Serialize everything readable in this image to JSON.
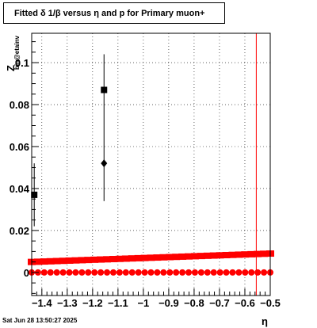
{
  "title": "Fitted δ 1/β versus η and p for Primary muon+",
  "footer_timestamp": "Sat Jun 28 13:50:27 2025",
  "colors": {
    "frame": "#000000",
    "grid": "#000000",
    "band": "#ff0000",
    "cut_line": "#ff0000",
    "points": "#000000"
  },
  "chart_data": {
    "type": "scatter",
    "title": "Fitted δ 1/β versus η and p for Primary muon+",
    "xlabel": "η",
    "ylabel": "Z",
    "ylabel_sub": "bin@etainv",
    "xlim": [
      -1.44,
      -0.5
    ],
    "ylim": [
      -0.011,
      0.114
    ],
    "x_ticks": [
      -1.4,
      -1.3,
      -1.2,
      -1.1,
      -1.0,
      -0.9,
      -0.8,
      -0.7,
      -0.6,
      -0.5
    ],
    "x_tick_labels": [
      "−1.4",
      "−1.3",
      "−1.2",
      "−1.1",
      "−1",
      "−0.9",
      "−0.8",
      "−0.7",
      "−0.6",
      "−0.5"
    ],
    "y_ticks": [
      0,
      0.02,
      0.04,
      0.06,
      0.08,
      0.1
    ],
    "y_tick_labels": [
      "0",
      "0.02",
      "0.04",
      "0.06",
      "0.08",
      "0.1"
    ],
    "grid": true,
    "vertical_line_x": -0.555,
    "series": [
      {
        "marker": "square",
        "color": "#000000",
        "points": [
          {
            "x": -1.43,
            "y": 0.037,
            "err": 0.015
          },
          {
            "x": -1.155,
            "y": 0.087,
            "err": 0.017
          }
        ]
      },
      {
        "marker": "diamond",
        "color": "#000000",
        "points": [
          {
            "x": -1.155,
            "y": 0.052,
            "err": 0.018
          }
        ]
      },
      {
        "marker": "square",
        "color": "#ff0000",
        "band_start": [
          -1.44,
          0.005
        ],
        "band_end": [
          -0.5,
          0.009
        ]
      },
      {
        "marker": "circle",
        "color": "#ff0000",
        "band_start": [
          -1.44,
          0.0
        ],
        "band_end": [
          -0.5,
          0.0
        ]
      }
    ]
  }
}
